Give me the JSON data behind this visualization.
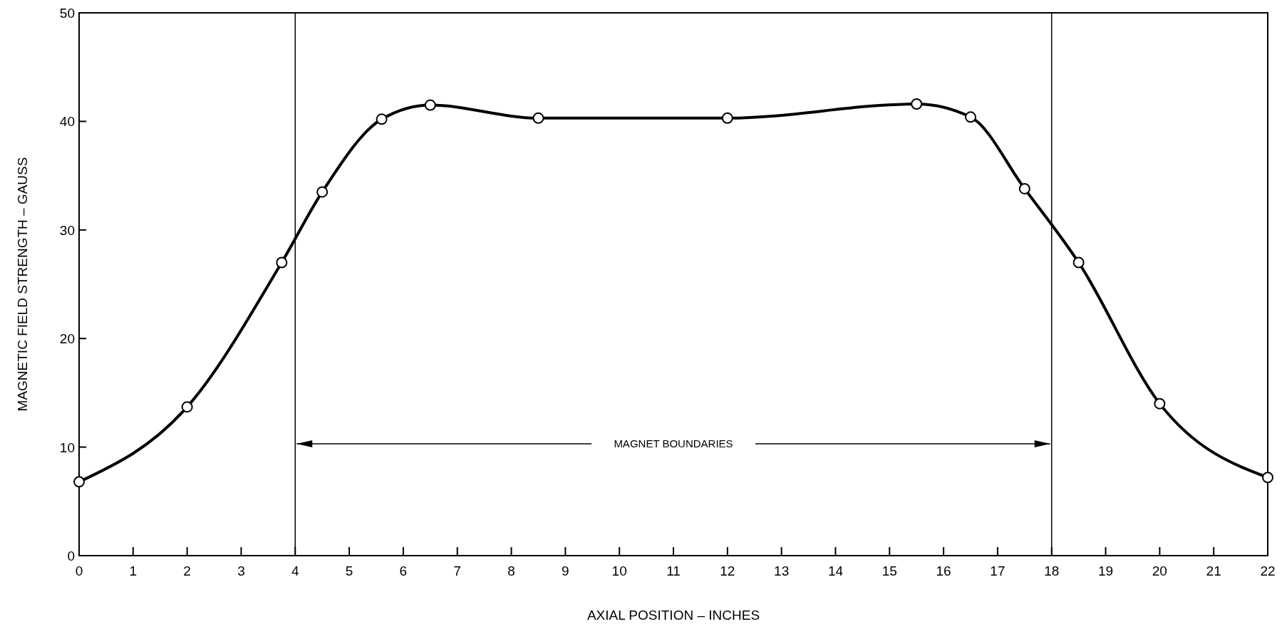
{
  "chart_data": {
    "type": "line",
    "xlabel": "AXIAL POSITION – INCHES",
    "ylabel": "MAGNETIC FIELD STRENGTH –  GAUSS",
    "series": [
      {
        "color": "#000000",
        "x": [
          0,
          2,
          3.75,
          4.5,
          5.6,
          6.5,
          8.5,
          12,
          15.5,
          16.5,
          17.5,
          18.5,
          20,
          22
        ],
        "values": [
          6.8,
          13.7,
          27,
          33.5,
          40.2,
          41.5,
          40.3,
          40.3,
          41.6,
          40.4,
          33.8,
          27,
          14,
          7.2
        ]
      }
    ],
    "xlim": [
      0,
      22
    ],
    "xticks": [
      0,
      1,
      2,
      3,
      4,
      5,
      6,
      7,
      8,
      9,
      10,
      11,
      12,
      13,
      14,
      15,
      16,
      17,
      18,
      19,
      20,
      21,
      22
    ],
    "ylim": [
      0,
      50
    ],
    "yticks": [
      0,
      10,
      20,
      30,
      40,
      50
    ],
    "marker": "circle",
    "line_style": "solid",
    "grid": false,
    "ref_lines": [
      {
        "axis": "x",
        "value": 4,
        "color": "#000000"
      },
      {
        "axis": "x",
        "value": 18,
        "color": "#000000"
      }
    ],
    "annotations": [
      "MAGNET BOUNDARIES"
    ]
  }
}
